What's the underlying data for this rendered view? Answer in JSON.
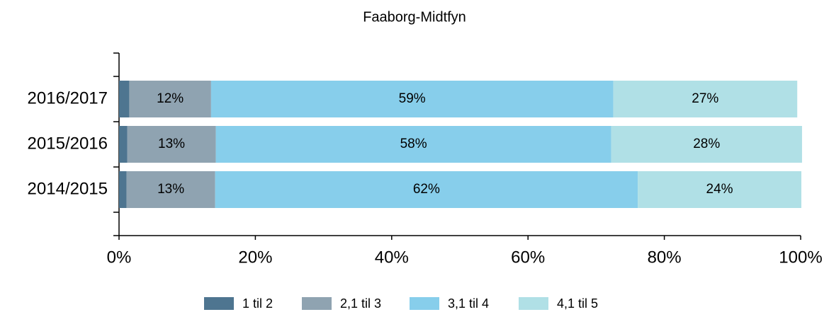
{
  "chart_data": {
    "type": "stacked_barh",
    "title": "Faaborg-Midtfyn",
    "categories": [
      "2016/2017",
      "2015/2016",
      "2014/2015"
    ],
    "series": [
      {
        "name": "1 til 2",
        "color": "#4e7590",
        "values": [
          1.5,
          1.2,
          1.1
        ]
      },
      {
        "name": "2,1 til 3",
        "color": "#8fa3b1",
        "values": [
          12,
          13,
          13
        ],
        "value_labels": [
          "12%",
          "13%",
          "13%"
        ]
      },
      {
        "name": "3,1 til 4",
        "color": "#87ceeb",
        "values": [
          59,
          58,
          62
        ],
        "value_labels": [
          "59%",
          "58%",
          "62%"
        ]
      },
      {
        "name": "4,1 til 5",
        "color": "#b0e0e6",
        "values": [
          27,
          28,
          24
        ],
        "value_labels": [
          "27%",
          "28%",
          "24%"
        ]
      }
    ],
    "xlim": [
      0,
      100
    ],
    "xticks": [
      {
        "value": 0,
        "label": "0%"
      },
      {
        "value": 20,
        "label": "20%"
      },
      {
        "value": 40,
        "label": "40%"
      },
      {
        "value": 60,
        "label": "60%"
      },
      {
        "value": 80,
        "label": "80%"
      },
      {
        "value": 100,
        "label": "100%"
      }
    ]
  }
}
